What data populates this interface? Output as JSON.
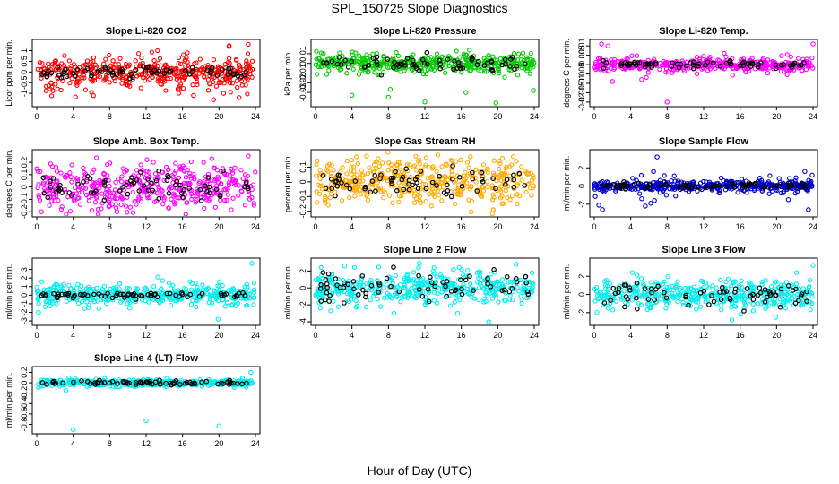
{
  "figure": {
    "title": "SPL_150725  Slope Diagnostics",
    "xlabel": "Hour of Day (UTC)"
  },
  "chart_data": [
    {
      "type": "scatter",
      "title": "Slope Li-820 CO2",
      "ylabel": "Licor ppm per min.",
      "xlim": [
        0,
        24
      ],
      "xticks": [
        0,
        4,
        8,
        12,
        16,
        20,
        24
      ],
      "ylim": [
        -1.5,
        1.4
      ],
      "yticks": [
        -1.0,
        -0.5,
        0.0,
        0.5,
        1.0
      ],
      "color": "#ff0000",
      "spread": 0.32,
      "outlier_spread": 1.3,
      "black_spread": 0.12,
      "outliers": [
        [
          15.5,
          -0.8
        ],
        [
          17.2,
          -1.1
        ],
        [
          19.4,
          -1.3
        ],
        [
          20.5,
          -1.0
        ],
        [
          22.2,
          -1.2
        ],
        [
          23.2,
          1.3
        ],
        [
          21.1,
          1.2
        ],
        [
          16.5,
          0.9
        ]
      ]
    },
    {
      "type": "scatter",
      "title": "Slope Li-820 Pressure",
      "ylabel": "kPa per min.",
      "xlim": [
        0,
        24
      ],
      "xticks": [
        0,
        4,
        8,
        12,
        16,
        20,
        24
      ],
      "ylim": [
        -0.042,
        0.022
      ],
      "yticks": [
        -0.03,
        -0.02,
        -0.01,
        0.0,
        0.01
      ],
      "color": "#00cc00",
      "spread": 0.005,
      "outlier_spread": 0.012,
      "black_spread": 0.004,
      "outliers": [
        [
          4.0,
          -0.033
        ],
        [
          8.0,
          -0.035
        ],
        [
          8.2,
          -0.027
        ],
        [
          12.0,
          -0.04
        ],
        [
          16.5,
          -0.03
        ],
        [
          19.8,
          -0.041
        ],
        [
          23.9,
          -0.028
        ]
      ]
    },
    {
      "type": "scatter",
      "title": "Slope Li-820 Temp.",
      "ylabel": "degrees C per min.",
      "xlim": [
        0,
        24
      ],
      "xticks": [
        0,
        4,
        8,
        12,
        16,
        20,
        24
      ],
      "ylim": [
        -0.021,
        0.012
      ],
      "yticks": [
        -0.02,
        -0.015,
        -0.01,
        -0.005,
        0.0,
        0.005,
        0.01
      ],
      "color": "#ff00ff",
      "spread": 0.0016,
      "outlier_spread": 0.006,
      "black_spread": 0.001,
      "outliers": [
        [
          0.8,
          0.011
        ],
        [
          1.5,
          0.01
        ],
        [
          8.0,
          -0.02
        ],
        [
          5.2,
          -0.008
        ],
        [
          2.0,
          -0.009
        ],
        [
          24.0,
          0.011
        ]
      ]
    },
    {
      "type": "scatter",
      "title": "Slope Amb. Box Temp.",
      "ylabel": "degrees C per min.",
      "xlim": [
        0,
        24
      ],
      "xticks": [
        0,
        4,
        8,
        12,
        16,
        20,
        24
      ],
      "ylim": [
        -0.22,
        0.28
      ],
      "yticks": [
        -0.2,
        -0.1,
        0.0,
        0.1,
        0.2
      ],
      "color": "#ff00ff",
      "spread": 0.09,
      "outlier_spread": 0.2,
      "black_spread": 0.06,
      "outliers": [
        [
          23.2,
          0.25
        ],
        [
          2.1,
          0.16
        ],
        [
          12.8,
          0.2
        ],
        [
          0.5,
          -0.2
        ],
        [
          8.8,
          -0.2
        ]
      ]
    },
    {
      "type": "scatter",
      "title": "Slope Gas Stream RH",
      "ylabel": "percent per min.",
      "xlim": [
        0,
        24
      ],
      "xticks": [
        0,
        4,
        8,
        12,
        16,
        20,
        24
      ],
      "ylim": [
        -0.22,
        0.2
      ],
      "yticks": [
        -0.2,
        -0.1,
        0.0,
        0.1
      ],
      "color": "#ffaa00",
      "spread": 0.08,
      "outlier_spread": 0.17,
      "black_spread": 0.05,
      "outliers": [
        [
          4.5,
          0.17
        ],
        [
          17.0,
          0.17
        ],
        [
          20.5,
          0.16
        ],
        [
          19.5,
          -0.19
        ]
      ]
    },
    {
      "type": "scatter",
      "title": "Slope Sample Flow",
      "ylabel": "ml/min per min.",
      "xlim": [
        0,
        24
      ],
      "xticks": [
        0,
        4,
        8,
        12,
        16,
        20,
        24
      ],
      "ylim": [
        -3.1,
        3.7
      ],
      "yticks": [
        -2,
        0,
        2
      ],
      "color": "#0000cc",
      "spread": 0.3,
      "outlier_spread": 1.2,
      "black_spread": 0.2,
      "outliers": [
        [
          0.5,
          -2.1
        ],
        [
          0.9,
          -2.6
        ],
        [
          5.2,
          -1.4
        ],
        [
          5.6,
          -2.2
        ],
        [
          6.2,
          -1.9
        ],
        [
          6.6,
          -1.6
        ],
        [
          6.9,
          3.2
        ],
        [
          6.5,
          1.6
        ],
        [
          21.3,
          -1.5
        ],
        [
          23.1,
          1.6
        ],
        [
          23.5,
          -2.6
        ],
        [
          23.9,
          1.2
        ]
      ]
    },
    {
      "type": "scatter",
      "title": "Slope Line 1 Flow",
      "ylabel": "ml/min per min.",
      "xlim": [
        0,
        24
      ],
      "xticks": [
        0,
        4,
        8,
        12,
        16,
        20,
        24
      ],
      "ylim": [
        -3.2,
        4.0
      ],
      "yticks": [
        -3,
        -2,
        -1,
        0,
        1,
        2,
        3
      ],
      "color": "#00eeee",
      "spread": 0.55,
      "outlier_spread": 1.6,
      "black_spread": 0.2,
      "outliers": [
        [
          0.2,
          -2.0
        ],
        [
          19.9,
          -2.8
        ],
        [
          23.6,
          3.7
        ],
        [
          13.8,
          1.7
        ],
        [
          10.2,
          -1.5
        ]
      ]
    },
    {
      "type": "scatter",
      "title": "Slope Line 2 Flow",
      "ylabel": "ml/min per min.",
      "xlim": [
        0,
        24
      ],
      "xticks": [
        0,
        4,
        8,
        12,
        16,
        20,
        24
      ],
      "ylim": [
        -4.1,
        3.2
      ],
      "yticks": [
        -4,
        -2,
        0,
        2
      ],
      "color": "#00eeee",
      "spread": 0.9,
      "outlier_spread": 2.2,
      "black_spread": 0.9,
      "outliers": [
        [
          8.6,
          -3.0
        ],
        [
          11.4,
          2.9
        ],
        [
          15.6,
          -3.0
        ],
        [
          19.0,
          -4.0
        ],
        [
          22.0,
          2.8
        ],
        [
          3.2,
          2.6
        ]
      ]
    },
    {
      "type": "scatter",
      "title": "Slope Line 3 Flow",
      "ylabel": "ml/min per min.",
      "xlim": [
        0,
        24
      ],
      "xticks": [
        0,
        4,
        8,
        12,
        16,
        20,
        24
      ],
      "ylim": [
        -3.1,
        3.7
      ],
      "yticks": [
        -2,
        0,
        2
      ],
      "color": "#00eeee",
      "spread": 0.75,
      "outlier_spread": 2.0,
      "black_spread": 0.7,
      "outliers": [
        [
          0.3,
          -2.0
        ],
        [
          15.1,
          -2.8
        ],
        [
          19.9,
          -2.5
        ],
        [
          24.0,
          3.2
        ],
        [
          4.2,
          2.4
        ]
      ]
    },
    {
      "type": "scatter",
      "title": "Slope Line 4 (LT) Flow",
      "ylabel": "ml/min per min.",
      "xlim": [
        0,
        24
      ],
      "xticks": [
        0,
        4,
        8,
        12,
        16,
        20,
        24
      ],
      "ylim": [
        -0.93,
        0.26
      ],
      "yticks": [
        -0.8,
        -0.6,
        -0.4,
        -0.2,
        0.0,
        0.2
      ],
      "color": "#00eeee",
      "spread": 0.03,
      "outlier_spread": 0.1,
      "black_spread": 0.02,
      "outliers": [
        [
          4.0,
          -0.9
        ],
        [
          12.0,
          -0.73
        ],
        [
          20.0,
          -0.83
        ],
        [
          23.5,
          0.2
        ],
        [
          3.2,
          -0.15
        ]
      ]
    }
  ]
}
